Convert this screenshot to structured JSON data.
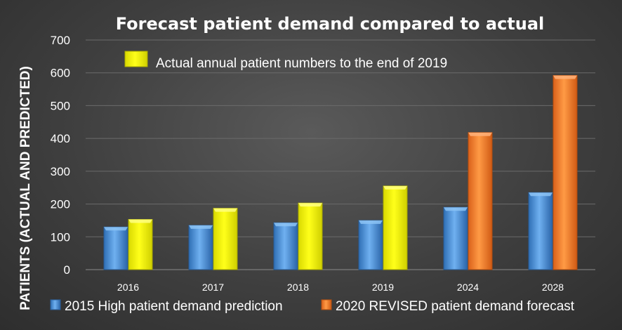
{
  "chart_data": {
    "type": "bar",
    "title": "Forecast patient demand compared to actual",
    "ylabel": "PATIENTS (ACTUAL AND PREDICTED)",
    "xlabel": "",
    "ylim": [
      0,
      700
    ],
    "yticks": [
      0,
      100,
      200,
      300,
      400,
      500,
      600,
      700
    ],
    "grid": true,
    "categories": [
      "2016",
      "2017",
      "2018",
      "2019",
      "2024",
      "2028"
    ],
    "series": [
      {
        "name": "2015 High patient demand prediction",
        "color": "#4a8fd6",
        "values": [
          130,
          135,
          143,
          150,
          190,
          235
        ],
        "legend": true
      },
      {
        "name": "Actual annual patient numbers to the end of 2019",
        "color": "#f2f200",
        "values": [
          153,
          187,
          203,
          255,
          null,
          null
        ],
        "legend": false
      },
      {
        "name": "2020 REVISED patient demand forecast",
        "color": "#f07a24",
        "values": [
          null,
          null,
          null,
          null,
          418,
          592
        ],
        "legend": true
      }
    ],
    "annotation": "Actual annual patient numbers to the end of 2019",
    "legend_position": "bottom"
  }
}
